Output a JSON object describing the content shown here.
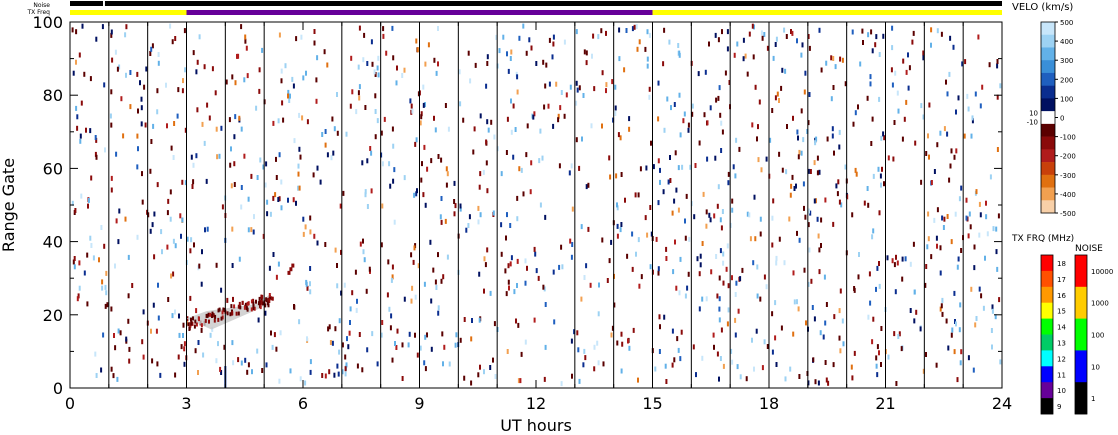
{
  "top_bars": {
    "noise_label": "Noise",
    "txfreq_label": "TX Freq"
  },
  "chart_data": {
    "type": "heatmap",
    "xlabel": "UT hours",
    "ylabel": "Range Gate",
    "xlim": [
      0,
      24
    ],
    "ylim": [
      0,
      100
    ],
    "x_ticks": [
      "0",
      "3",
      "6",
      "9",
      "12",
      "15",
      "18",
      "21",
      "24"
    ],
    "y_ticks": [
      "0",
      "20",
      "40",
      "60",
      "80",
      "100"
    ],
    "scan_boundaries_ut": [
      1.0,
      2.0,
      3.0,
      4.0,
      5.0,
      7.0,
      8.0,
      9.0,
      10.0,
      11.0,
      13.0,
      14.0,
      15.0,
      16.0,
      17.0,
      18.0,
      19.0,
      20.0,
      21.0,
      22.0,
      23.0
    ],
    "noise_bar": {
      "segments": [
        {
          "start": 0,
          "end": 0.85,
          "color": "#000000"
        },
        {
          "start": 0.9,
          "end": 24,
          "color": "#000000"
        }
      ]
    },
    "txfreq_bar": {
      "segments": [
        {
          "start": 0,
          "end": 3,
          "color": "#ffff00"
        },
        {
          "start": 3,
          "end": 15,
          "color": "#660099"
        },
        {
          "start": 15,
          "end": 24,
          "color": "#ffff00"
        }
      ]
    },
    "feature": {
      "description_ut": [
        3.0,
        5.2
      ],
      "range_gates": [
        16,
        34
      ]
    },
    "velo_scale": {
      "title": "VELO (km/s)",
      "ticks": [
        "500",
        "400",
        "300",
        "200",
        "100",
        "0",
        "-100",
        "-200",
        "-300",
        "-400",
        "-500"
      ],
      "side_labels": [
        "10",
        "-10"
      ],
      "colors": [
        "#c8e6fa",
        "#9dd2f3",
        "#62b1e8",
        "#3a8fd8",
        "#1f5fbf",
        "#0a2d8f",
        "#001060",
        "#ffffff",
        "#5a0000",
        "#8a0a0a",
        "#b01c1c",
        "#c8400a",
        "#e07010",
        "#f2a050",
        "#f8d0a8"
      ]
    },
    "txfreq_scale": {
      "title": "TX FRQ (MHz)",
      "ticks": [
        "18",
        "17",
        "16",
        "15",
        "14",
        "13",
        "12",
        "11",
        "10",
        "9"
      ],
      "colors": [
        "#ff0000",
        "#ff5000",
        "#ff9900",
        "#ffff00",
        "#00ff00",
        "#00cc66",
        "#00ffff",
        "#0000ff",
        "#660099",
        "#000000"
      ]
    },
    "noise_scale": {
      "title": "NOISE",
      "ticks": [
        "10000",
        "1000",
        "100",
        "10",
        "1"
      ],
      "colors": [
        "#ff0000",
        "#ffcc00",
        "#00ff00",
        "#0000ff",
        "#000000"
      ]
    }
  }
}
